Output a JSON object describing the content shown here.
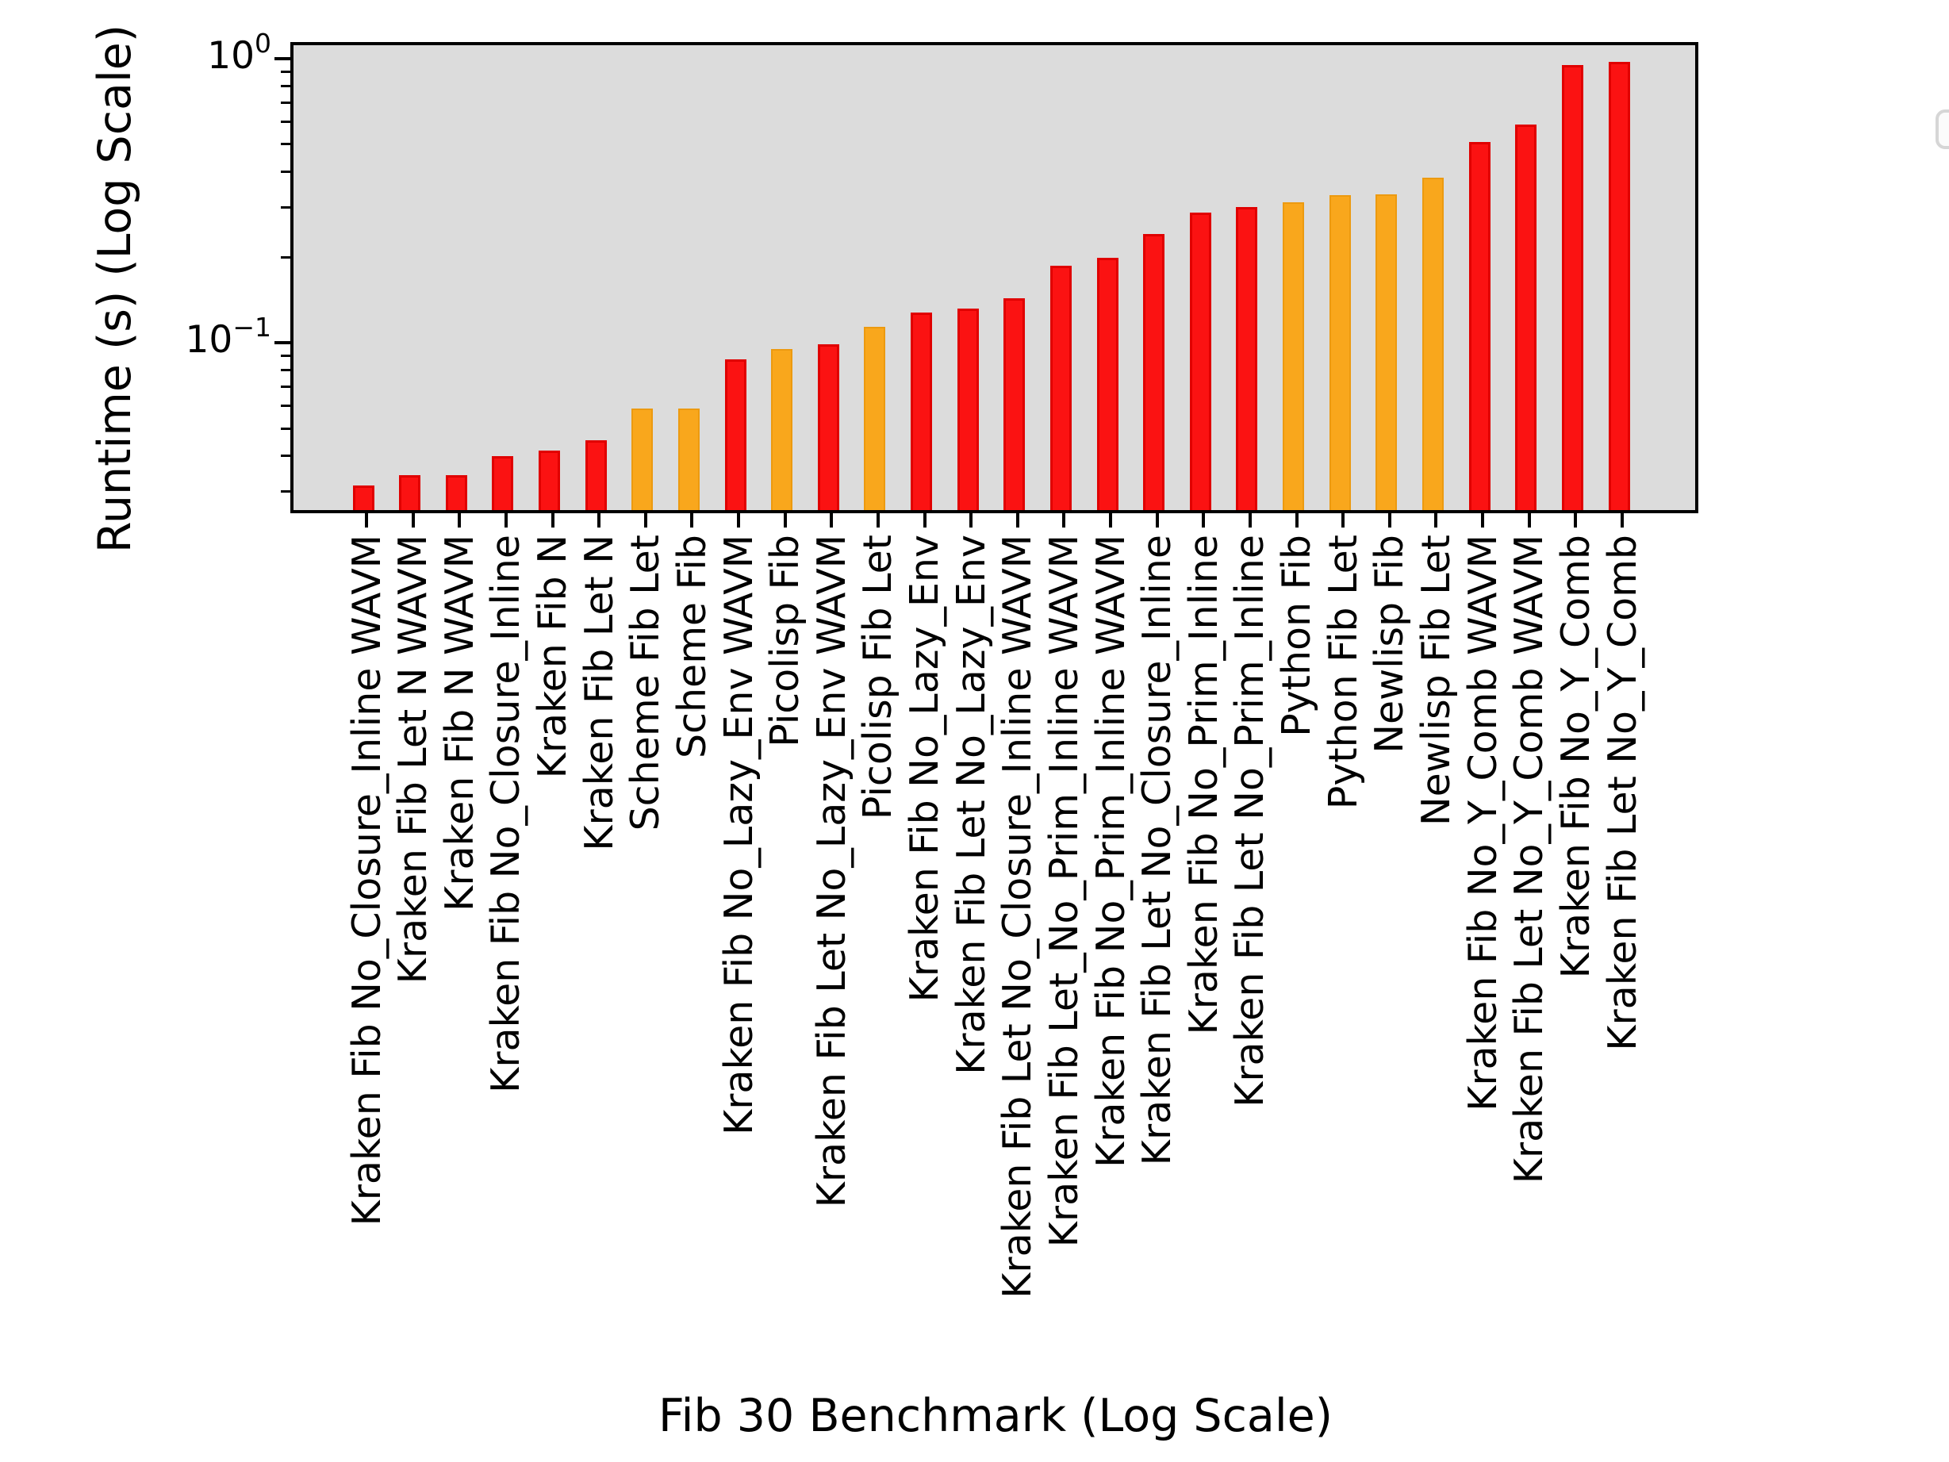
{
  "figure": {
    "background": "#ffffff",
    "plot_background": "#dcdcdc",
    "spine_color": "#000000"
  },
  "chart_data": {
    "type": "bar",
    "title": "",
    "xlabel": "Fib 30 Benchmark (Log Scale)",
    "ylabel": "Runtime (s) (Log Scale)",
    "yscale": "log",
    "ylim": [
      0.0258,
      1.116
    ],
    "grid": false,
    "legend_position": "upper right",
    "legend_entries": [],
    "categories": [
      "Kraken Fib No_Closure_Inline WAVM",
      "Kraken Fib Let N WAVM",
      "Kraken Fib N WAVM",
      "Kraken Fib No_Closure_Inline",
      "Kraken Fib N",
      "Kraken Fib Let N",
      "Scheme Fib Let",
      "Scheme Fib",
      "Kraken Fib No_Lazy_Env WAVM",
      "Picolisp Fib",
      "Kraken Fib Let No_Lazy_Env WAVM",
      "Picolisp Fib Let",
      "Kraken Fib No_Lazy_Env",
      "Kraken Fib Let No_Lazy_Env",
      "Kraken Fib Let No_Closure_Inline WAVM",
      "Kraken Fib Let_No_Prim_Inline WAVM",
      "Kraken Fib No_Prim_Inline WAVM",
      "Kraken Fib Let No_Closure_Inline",
      "Kraken Fib No_Prim_Inline",
      "Kraken Fib Let No_Prim_Inline",
      "Python Fib",
      "Python Fib Let",
      "Newlisp Fib",
      "Newlisp Fib Let",
      "Kraken Fib No_Y_Comb WAVM",
      "Kraken Fib Let No_Y_Comb WAVM",
      "Kraken Fib No_Y_Comb",
      "Kraken Fib Let No_Y_Comb"
    ],
    "values": [
      0.0306,
      0.0334,
      0.0334,
      0.039,
      0.0407,
      0.0443,
      0.0571,
      0.0571,
      0.0852,
      0.0926,
      0.0966,
      0.1108,
      0.125,
      0.1283,
      0.1403,
      0.1827,
      0.1936,
      0.2362,
      0.2793,
      0.2928,
      0.3037,
      0.3224,
      0.3245,
      0.3707,
      0.497,
      0.573,
      0.927,
      0.952
    ],
    "bar_colors": [
      "red",
      "red",
      "red",
      "red",
      "red",
      "red",
      "orange",
      "orange",
      "red",
      "orange",
      "red",
      "orange",
      "red",
      "red",
      "red",
      "red",
      "red",
      "red",
      "red",
      "red",
      "orange",
      "orange",
      "orange",
      "orange",
      "red",
      "red",
      "red",
      "red"
    ],
    "color_map": {
      "red": {
        "fill": "#fb1212",
        "edge": "#e00000"
      },
      "orange": {
        "fill": "#f9a71c",
        "edge": "#ec9a10"
      }
    },
    "yticks_major": [
      {
        "value": 1.0,
        "base": "10",
        "exp": "0"
      },
      {
        "value": 0.1,
        "base": "10",
        "exp": "−1"
      }
    ],
    "yticks_minor": [
      0.9,
      0.8,
      0.7,
      0.6,
      0.5,
      0.4,
      0.3,
      0.2,
      0.09,
      0.08,
      0.07,
      0.06,
      0.05,
      0.04,
      0.03
    ]
  }
}
